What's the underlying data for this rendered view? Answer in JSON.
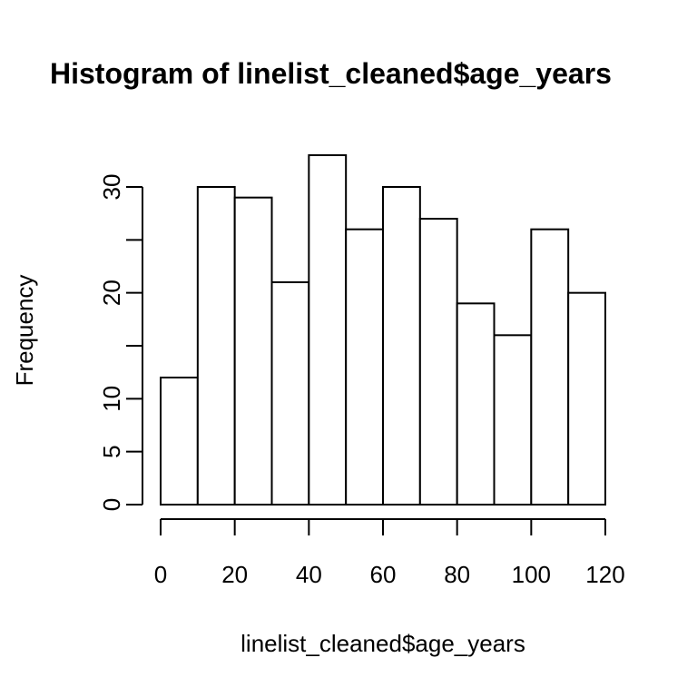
{
  "chart_data": {
    "type": "bar",
    "subtype": "histogram",
    "title": "Histogram of linelist_cleaned$age_years",
    "xlabel": "linelist_cleaned$age_years",
    "ylabel": "Frequency",
    "bin_edges": [
      0,
      10,
      20,
      30,
      40,
      50,
      60,
      70,
      80,
      90,
      100,
      110,
      120
    ],
    "values": [
      12,
      30,
      29,
      21,
      33,
      26,
      30,
      27,
      19,
      16,
      26,
      20
    ],
    "xlim": [
      0,
      120
    ],
    "ylim": [
      0,
      30
    ],
    "x_ticks": [
      0,
      20,
      40,
      60,
      80,
      100,
      120
    ],
    "x_tick_labels": [
      "0",
      "20",
      "40",
      "60",
      "80",
      "100",
      "120"
    ],
    "y_ticks": [
      0,
      5,
      10,
      15,
      20,
      25,
      30
    ],
    "y_tick_labels": [
      "0",
      "5",
      "10",
      "",
      "20",
      "",
      "30"
    ],
    "grid": false,
    "bar_fill": "#ffffff",
    "bar_stroke": "#000000"
  }
}
